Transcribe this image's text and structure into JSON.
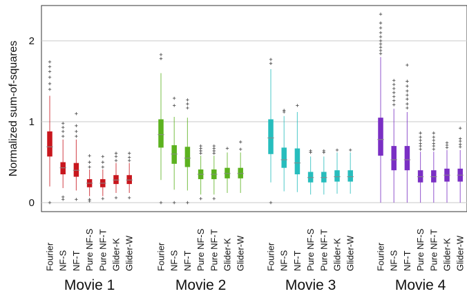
{
  "chart_data": {
    "type": "box",
    "ylabel": "Normalized sum-of-squares",
    "ylim": [
      0,
      2.45
    ],
    "yticks": [
      0,
      1,
      2
    ],
    "grid": true,
    "categories": [
      "Fourier",
      "NF-S",
      "NF-T",
      "Pure NF-S",
      "Pure NF-T",
      "Glider-K",
      "Glider-W"
    ],
    "groups": [
      {
        "name": "Movie 1",
        "color": "#c8161d",
        "boxes": [
          {
            "whislo": 0.2,
            "q1": 0.57,
            "med": 0.69,
            "q3": 0.88,
            "whishi": 1.32,
            "fliers": [
              1.4,
              1.47,
              1.55,
              1.62,
              1.68,
              1.74,
              0.0
            ]
          },
          {
            "whislo": 0.18,
            "q1": 0.35,
            "med": 0.43,
            "q3": 0.5,
            "whishi": 0.78,
            "fliers": [
              0.82,
              0.88,
              0.93,
              0.98,
              0.07,
              0.04
            ]
          },
          {
            "whislo": 0.15,
            "q1": 0.32,
            "med": 0.4,
            "q3": 0.49,
            "whishi": 0.78,
            "fliers": [
              0.82,
              0.88,
              0.95,
              1.1,
              0.04
            ]
          },
          {
            "whislo": 0.08,
            "q1": 0.19,
            "med": 0.24,
            "q3": 0.29,
            "whishi": 0.41,
            "fliers": [
              0.44,
              0.5,
              0.58,
              0.04,
              0.02
            ]
          },
          {
            "whislo": 0.08,
            "q1": 0.19,
            "med": 0.24,
            "q3": 0.29,
            "whishi": 0.41,
            "fliers": [
              0.44,
              0.5,
              0.57,
              0.05
            ]
          },
          {
            "whislo": 0.12,
            "q1": 0.23,
            "med": 0.28,
            "q3": 0.34,
            "whishi": 0.49,
            "fliers": [
              0.52,
              0.57,
              0.61,
              0.06
            ]
          },
          {
            "whislo": 0.12,
            "q1": 0.23,
            "med": 0.28,
            "q3": 0.34,
            "whishi": 0.49,
            "fliers": [
              0.52,
              0.56,
              0.61,
              0.06
            ]
          }
        ]
      },
      {
        "name": "Movie 2",
        "color": "#5cb21f",
        "boxes": [
          {
            "whislo": 0.28,
            "q1": 0.68,
            "med": 0.84,
            "q3": 1.03,
            "whishi": 1.6,
            "fliers": [
              1.78,
              1.83,
              0.0
            ]
          },
          {
            "whislo": 0.16,
            "q1": 0.48,
            "med": 0.6,
            "q3": 0.71,
            "whishi": 1.06,
            "fliers": [
              1.2,
              1.29,
              0.0
            ]
          },
          {
            "whislo": 0.15,
            "q1": 0.44,
            "med": 0.55,
            "q3": 0.69,
            "whishi": 1.05,
            "fliers": [
              1.17,
              1.22,
              1.27,
              0.0
            ]
          },
          {
            "whislo": 0.1,
            "q1": 0.29,
            "med": 0.35,
            "q3": 0.41,
            "whishi": 0.58,
            "fliers": [
              0.61,
              0.64,
              0.67,
              0.7,
              0.05
            ]
          },
          {
            "whislo": 0.1,
            "q1": 0.29,
            "med": 0.35,
            "q3": 0.41,
            "whishi": 0.58,
            "fliers": [
              0.61,
              0.64,
              0.67,
              0.7,
              0.05
            ]
          },
          {
            "whislo": 0.12,
            "q1": 0.3,
            "med": 0.36,
            "q3": 0.43,
            "whishi": 0.62,
            "fliers": [
              0.67
            ]
          },
          {
            "whislo": 0.12,
            "q1": 0.3,
            "med": 0.36,
            "q3": 0.43,
            "whishi": 0.62,
            "fliers": [
              0.66,
              0.75
            ]
          }
        ]
      },
      {
        "name": "Movie 3",
        "color": "#27bdbd",
        "boxes": [
          {
            "whislo": 0.25,
            "q1": 0.6,
            "med": 0.8,
            "q3": 1.03,
            "whishi": 1.65,
            "fliers": [
              1.72,
              1.77,
              0.0
            ]
          },
          {
            "whislo": 0.14,
            "q1": 0.43,
            "med": 0.53,
            "q3": 0.68,
            "whishi": 1.07,
            "fliers": [
              1.12,
              1.14
            ]
          },
          {
            "whislo": 0.13,
            "q1": 0.35,
            "med": 0.49,
            "q3": 0.67,
            "whishi": 1.12,
            "fliers": [
              1.2
            ]
          },
          {
            "whislo": 0.1,
            "q1": 0.25,
            "med": 0.31,
            "q3": 0.38,
            "whishi": 0.57,
            "fliers": [
              0.62,
              0.64
            ]
          },
          {
            "whislo": 0.1,
            "q1": 0.25,
            "med": 0.31,
            "q3": 0.38,
            "whishi": 0.57,
            "fliers": [
              0.62,
              0.64
            ]
          },
          {
            "whislo": 0.11,
            "q1": 0.26,
            "med": 0.32,
            "q3": 0.4,
            "whishi": 0.62,
            "fliers": [
              0.65
            ]
          },
          {
            "whislo": 0.11,
            "q1": 0.26,
            "med": 0.32,
            "q3": 0.4,
            "whishi": 0.62,
            "fliers": [
              0.65
            ]
          }
        ]
      },
      {
        "name": "Movie 4",
        "color": "#7a2fc4",
        "boxes": [
          {
            "whislo": 0.0,
            "q1": 0.58,
            "med": 0.78,
            "q3": 1.05,
            "whishi": 1.8,
            "fliers": [
              1.84,
              1.88,
              1.92,
              1.96,
              2.0,
              2.05,
              2.1,
              2.16,
              2.22,
              2.33
            ]
          },
          {
            "whislo": 0.0,
            "q1": 0.4,
            "med": 0.53,
            "q3": 0.7,
            "whishi": 1.16,
            "fliers": [
              1.21,
              1.26,
              1.31,
              1.36,
              1.41,
              1.46,
              1.51
            ]
          },
          {
            "whislo": 0.0,
            "q1": 0.4,
            "med": 0.53,
            "q3": 0.7,
            "whishi": 1.12,
            "fliers": [
              1.17,
              1.22,
              1.28,
              1.33,
              1.38,
              1.44,
              1.5,
              1.7
            ]
          },
          {
            "whislo": 0.0,
            "q1": 0.25,
            "med": 0.32,
            "q3": 0.4,
            "whishi": 0.63,
            "fliers": [
              0.66,
              0.7,
              0.73,
              0.77,
              0.81,
              0.86
            ]
          },
          {
            "whislo": 0.0,
            "q1": 0.25,
            "med": 0.32,
            "q3": 0.4,
            "whishi": 0.63,
            "fliers": [
              0.66,
              0.7,
              0.73,
              0.77,
              0.81,
              0.86
            ]
          },
          {
            "whislo": 0.0,
            "q1": 0.26,
            "med": 0.34,
            "q3": 0.42,
            "whishi": 0.65,
            "fliers": [
              0.68,
              0.71,
              0.74
            ]
          },
          {
            "whislo": 0.0,
            "q1": 0.26,
            "med": 0.34,
            "q3": 0.42,
            "whishi": 0.65,
            "fliers": [
              0.69,
              0.72,
              0.76,
              0.79,
              0.92
            ]
          }
        ]
      }
    ]
  }
}
